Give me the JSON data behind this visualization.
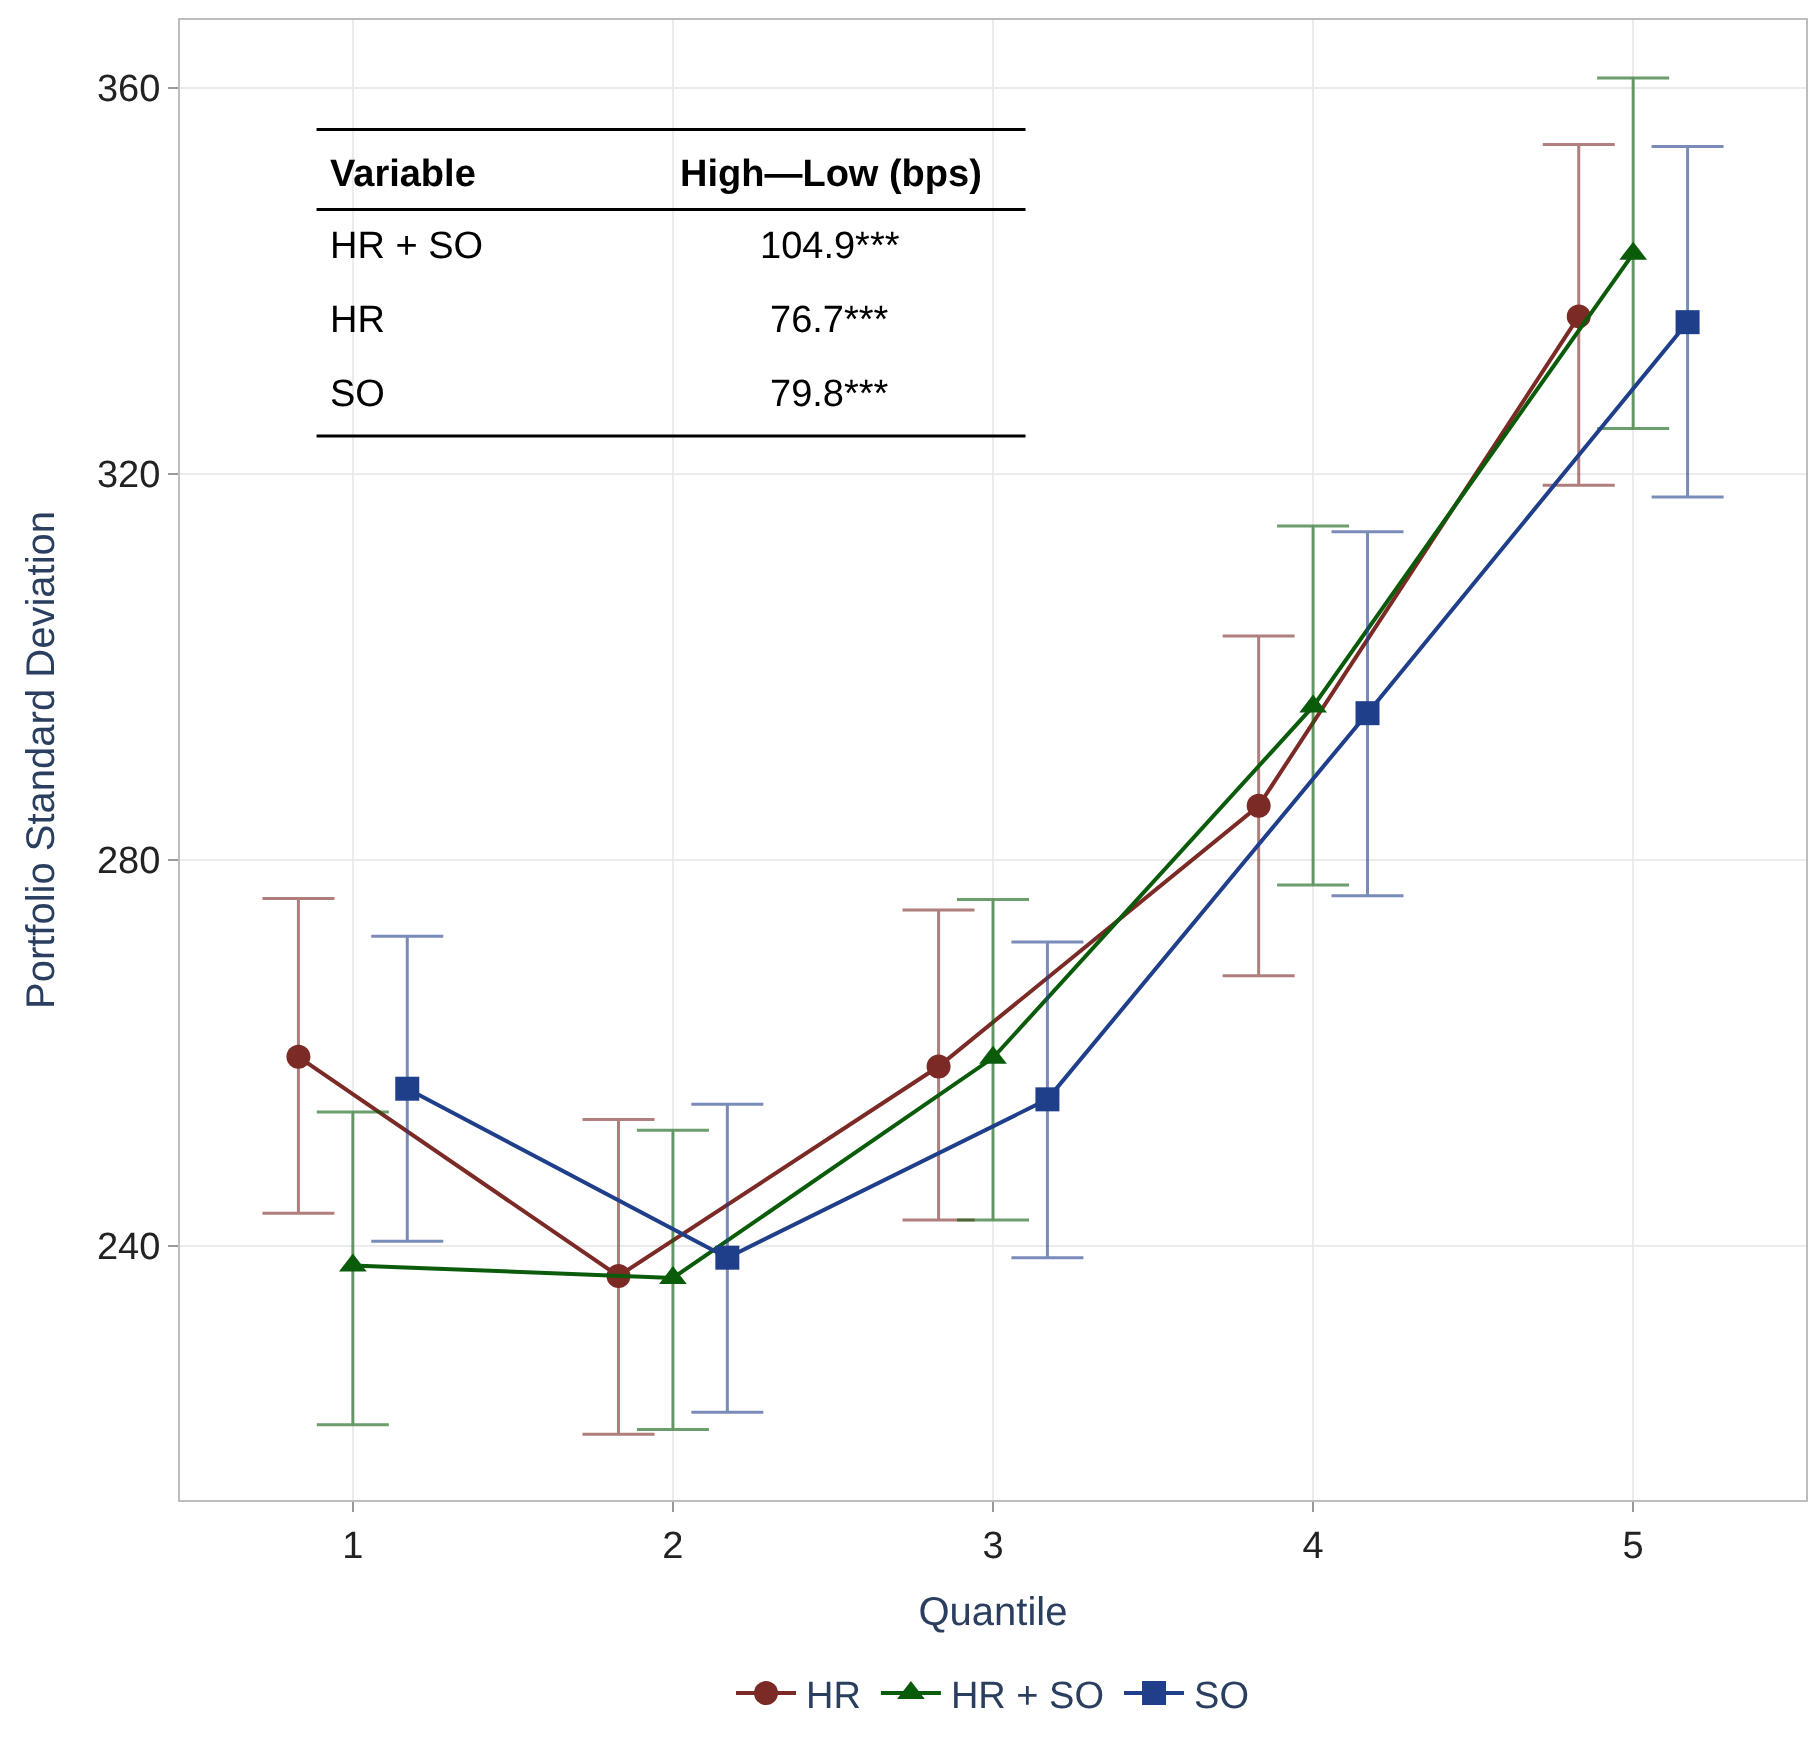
{
  "chart_data": {
    "type": "line",
    "xlabel": "Quantile",
    "ylabel": "Portfolio Standard Deviation",
    "xlim": [
      0.46,
      5.54
    ],
    "xticks": [
      1,
      2,
      3,
      4,
      5
    ],
    "ylim": [
      213.7,
      367
    ],
    "yticks": [
      240,
      280,
      320,
      360
    ],
    "grid": true,
    "legend": "bottom",
    "series": [
      {
        "name": "HR",
        "color": "#7b2a26",
        "marker": "circle",
        "x": [
          0.83,
          1.83,
          2.83,
          3.83,
          4.83
        ],
        "values": [
          259.6,
          236.9,
          258.6,
          285.6,
          336.3
        ],
        "errors": [
          [
            243.4,
            276.0
          ],
          [
            220.5,
            253.1
          ],
          [
            242.7,
            274.8
          ],
          [
            268.0,
            303.2
          ],
          [
            318.8,
            354.1
          ]
        ]
      },
      {
        "name": "HR + SO",
        "color": "#0a5c0a",
        "marker": "triangle",
        "x": [
          1,
          2,
          3,
          4,
          5
        ],
        "values": [
          238.0,
          236.7,
          259.5,
          295.9,
          342.8
        ],
        "errors": [
          [
            221.5,
            253.9
          ],
          [
            221.0,
            252.0
          ],
          [
            242.7,
            275.9
          ],
          [
            277.4,
            314.6
          ],
          [
            324.7,
            361.0
          ]
        ]
      },
      {
        "name": "SO",
        "color": "#1f3f8a",
        "marker": "square",
        "x": [
          1.17,
          2.17,
          3.17,
          4.17,
          5.17
        ],
        "values": [
          256.3,
          238.8,
          255.2,
          295.2,
          335.7
        ],
        "errors": [
          [
            240.5,
            272.1
          ],
          [
            222.8,
            254.7
          ],
          [
            238.8,
            271.5
          ],
          [
            276.3,
            314.0
          ],
          [
            317.6,
            353.9
          ]
        ]
      }
    ],
    "annotations": [
      "Variable",
      "High—Low (bps)",
      "HR + SO",
      "104.9***",
      "HR",
      "76.7***",
      "SO",
      "79.8***"
    ]
  }
}
